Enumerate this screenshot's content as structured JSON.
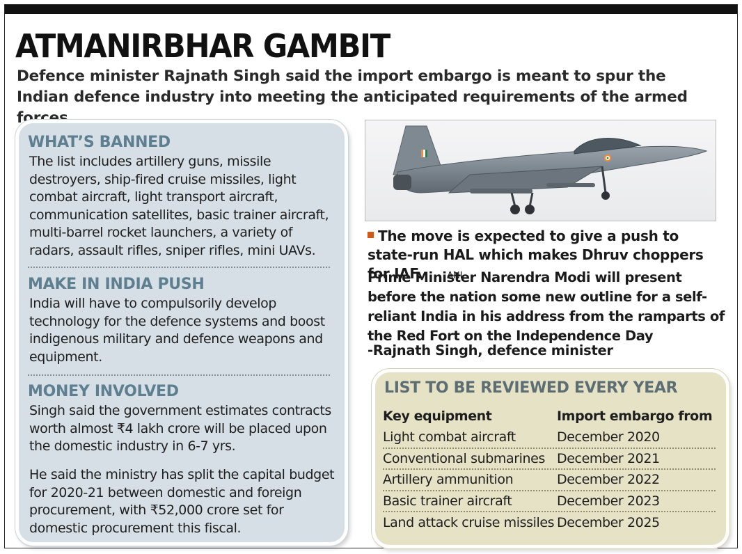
{
  "headline": "ATMANIRBHAR GAMBIT",
  "dek": "Defence minister Rajnath Singh said the import embargo is meant to spur the Indian defence industry into meeting the anticipated requirements of the armed forces",
  "sections": [
    {
      "heading": "WHAT’S BANNED",
      "paragraphs": [
        "The list includes artillery guns, missile destroyers, ship-fired cruise missiles, light combat aircraft, light transport aircraft, communication satellites, basic trainer aircraft, multi-barrel rocket launchers, a variety of radars, assault rifles, sniper rifles, mini UAVs."
      ]
    },
    {
      "heading": "MAKE IN INDIA PUSH",
      "paragraphs": [
        "India will have to compulsorily develop technology for the defence systems and boost indigenous military and defence weapons and equipment."
      ]
    },
    {
      "heading": "MONEY INVOLVED",
      "paragraphs": [
        "Singh said the government estimates contracts worth almost ₹4 lakh crore will be placed upon the domestic industry in 6-7 yrs.",
        "He said the ministry has split the capital budget for 2020-21 between domestic and foreign procurement, with ₹52,000 crore set for domestic procurement this fiscal."
      ]
    }
  ],
  "photo": {
    "caption": "The move is expected to give a push to state-run HAL which makes Dhruv choppers for IAF.",
    "credit": "ANI",
    "colors": {
      "aircraft": "#7d8790",
      "sky": "#eeeff1"
    }
  },
  "quote": {
    "text": "Prime Minister Narendra Modi will present before the nation some new outline for a self-reliant India in his address from the ramparts of the Red Fort on the Independence Day",
    "attribution": "-Rajnath Singh, defence minister"
  },
  "table": {
    "title": "LIST TO BE REVIEWED EVERY YEAR",
    "headers": [
      "Key equipment",
      "Import embargo from"
    ],
    "rows": [
      [
        "Light combat aircraft",
        "December 2020"
      ],
      [
        "Conventional submarines",
        "December 2021"
      ],
      [
        "Artillery ammunition",
        "December 2022"
      ],
      [
        "Basic trainer aircraft",
        "December 2023"
      ],
      [
        "Land attack cruise missiles",
        "December 2025"
      ]
    ]
  },
  "colors": {
    "left_panel": "#d6dfe5",
    "right_panel": "#e6e2c6",
    "section_heading": "#5d7f90",
    "bullet": "#d05a1c"
  }
}
